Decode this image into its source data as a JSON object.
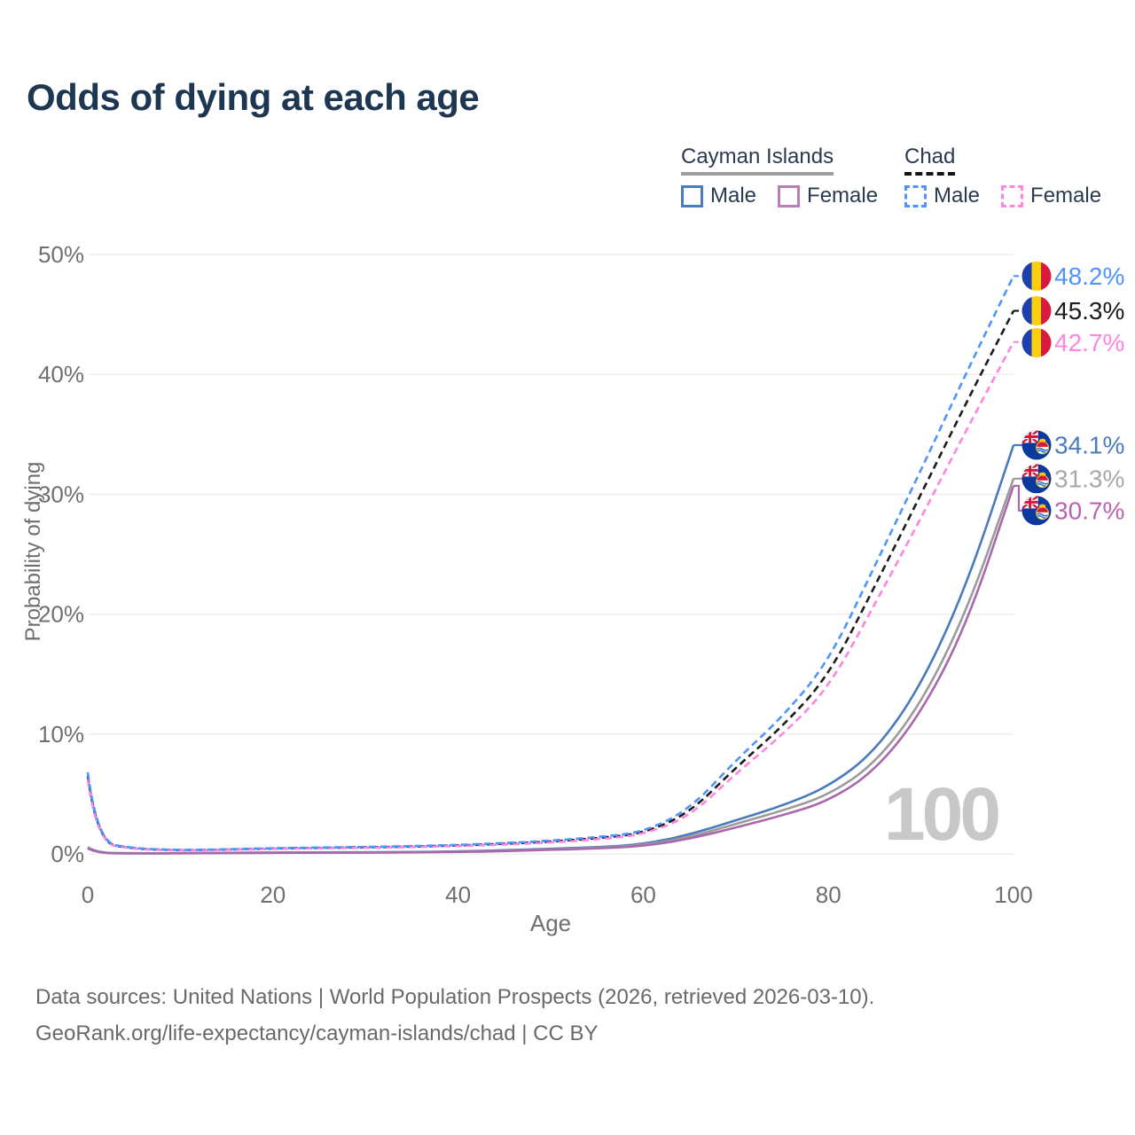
{
  "title": "Odds of dying at each age",
  "watermark": "100",
  "legend": {
    "countries": [
      {
        "name": "Cayman Islands",
        "underline": "solid",
        "underline_color": "#9e9e9e",
        "items": [
          {
            "label": "Male",
            "color": "#4a7cc0",
            "line": "solid"
          },
          {
            "label": "Female",
            "color": "#b77fb5",
            "line": "solid"
          }
        ]
      },
      {
        "name": "Chad",
        "underline": "dashed",
        "underline_color": "#141414",
        "items": [
          {
            "label": "Male",
            "color": "#4d94ff",
            "line": "dashed"
          },
          {
            "label": "Female",
            "color": "#ff85e0",
            "line": "dashed"
          }
        ]
      }
    ]
  },
  "footer": {
    "line1": "Data sources: United Nations | World Population Prospects (2026, retrieved 2026-03-10).",
    "line2": "GeoRank.org/life-expectancy/cayman-islands/chad | CC BY"
  },
  "chart_data": {
    "type": "line",
    "xlabel": "Age",
    "ylabel": "Probability of dying",
    "x_ticks": [
      0,
      20,
      40,
      60,
      80,
      100
    ],
    "y_ticks": [
      "0%",
      "10%",
      "20%",
      "30%",
      "40%",
      "50%"
    ],
    "xlim": [
      0,
      100
    ],
    "ylim_pct": [
      0,
      50
    ],
    "grid": "horizontal",
    "legend_position": "top-right",
    "ages": [
      0,
      1,
      5,
      10,
      15,
      20,
      25,
      30,
      35,
      40,
      45,
      50,
      55,
      60,
      65,
      70,
      75,
      80,
      85,
      90,
      95,
      100
    ],
    "series": [
      {
        "id": "chad-male",
        "country": "Chad",
        "sex": "Male",
        "style": "dashed",
        "color": "#4d94ff",
        "label_color": "#4d94ff",
        "flag": "td",
        "end_label": "48.2%",
        "values_pct": [
          6.8,
          1.0,
          0.45,
          0.32,
          0.38,
          0.48,
          0.53,
          0.58,
          0.65,
          0.75,
          0.9,
          1.1,
          1.4,
          1.8,
          3.7,
          7.8,
          11.4,
          16.0,
          24.0,
          32.0,
          40.3,
          48.2
        ]
      },
      {
        "id": "chad-all",
        "country": "Chad",
        "sex": "Both sexes",
        "style": "dashed",
        "color": "#1c1c1c",
        "label_color": "#1c1c1c",
        "flag": "td",
        "end_label": "45.3%",
        "values_pct": [
          6.5,
          0.95,
          0.42,
          0.3,
          0.36,
          0.45,
          0.5,
          0.55,
          0.61,
          0.7,
          0.84,
          1.03,
          1.3,
          1.7,
          3.4,
          7.2,
          10.6,
          14.8,
          22.3,
          30.0,
          37.8,
          45.3
        ]
      },
      {
        "id": "chad-female",
        "country": "Chad",
        "sex": "Female",
        "style": "dashed",
        "color": "#ff85e0",
        "label_color": "#ff85e0",
        "flag": "td",
        "end_label": "42.7%",
        "values_pct": [
          6.2,
          0.9,
          0.4,
          0.28,
          0.33,
          0.42,
          0.47,
          0.51,
          0.57,
          0.66,
          0.78,
          0.95,
          1.2,
          1.6,
          3.1,
          6.7,
          9.9,
          13.8,
          20.8,
          28.0,
          35.5,
          42.7
        ]
      },
      {
        "id": "cayman-male",
        "country": "Cayman Islands",
        "sex": "Male",
        "style": "solid",
        "color": "#4a7abd",
        "label_color": "#4a7cc4",
        "flag": "ky",
        "end_label": "34.1%",
        "values_pct": [
          0.55,
          0.08,
          0.05,
          0.06,
          0.09,
          0.11,
          0.13,
          0.14,
          0.16,
          0.21,
          0.3,
          0.44,
          0.55,
          0.8,
          1.6,
          2.8,
          4.0,
          5.6,
          8.5,
          14.0,
          22.5,
          34.1
        ]
      },
      {
        "id": "cayman-all",
        "country": "Cayman Islands",
        "sex": "Both sexes",
        "style": "solid",
        "color": "#9b9b9b",
        "label_color": "#a8a8a8",
        "flag": "ky",
        "end_label": "31.3%",
        "values_pct": [
          0.5,
          0.07,
          0.05,
          0.05,
          0.08,
          0.1,
          0.11,
          0.12,
          0.14,
          0.18,
          0.26,
          0.38,
          0.5,
          0.72,
          1.4,
          2.5,
          3.6,
          4.9,
          7.5,
          12.5,
          20.3,
          31.3
        ]
      },
      {
        "id": "cayman-female",
        "country": "Cayman Islands",
        "sex": "Female",
        "style": "solid",
        "color": "#a968ab",
        "label_color": "#b964ae",
        "flag": "ky",
        "end_label": "30.7%",
        "values_pct": [
          0.45,
          0.06,
          0.04,
          0.05,
          0.07,
          0.09,
          0.1,
          0.11,
          0.13,
          0.16,
          0.23,
          0.34,
          0.45,
          0.65,
          1.25,
          2.2,
          3.2,
          4.4,
          6.9,
          11.7,
          19.2,
          30.7
        ]
      }
    ],
    "flags": {
      "td": {
        "blue": "#1e3fae",
        "yellow": "#fccf0d",
        "red": "#d81a3c"
      },
      "ky": {
        "field": "#0b3a9e",
        "red": "#d6173d",
        "white": "#ffffff",
        "gold": "#f4c514",
        "wblue": "#2a6fd1"
      }
    },
    "axis_color": "#6f6f6f",
    "grid_color": "#ededed",
    "watermark_color": "#c8c8c8"
  }
}
